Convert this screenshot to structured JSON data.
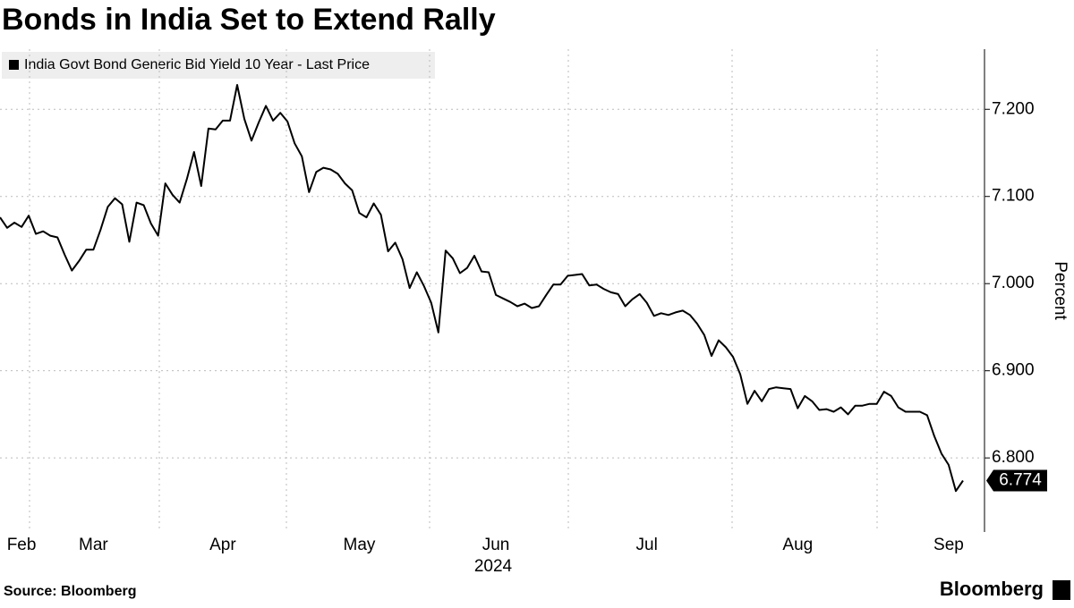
{
  "chart_data": {
    "type": "line",
    "title": "Bonds in India Set to Extend Rally",
    "legend": "India Govt Bond Generic Bid Yield 10 Year - Last Price",
    "ylabel": "Percent",
    "xlabel": "2024",
    "source": "Source: Bloomberg",
    "brand": "Bloomberg",
    "color": "#000000",
    "grid": true,
    "categories": [
      null,
      null,
      null,
      "Feb",
      null,
      null,
      null,
      null,
      null,
      null,
      null,
      null,
      null,
      "Mar",
      null,
      null,
      null,
      null,
      null,
      null,
      null,
      null,
      null,
      null,
      null,
      null,
      null,
      null,
      null,
      null,
      null,
      "Apr",
      null,
      null,
      null,
      null,
      null,
      null,
      null,
      null,
      null,
      null,
      null,
      null,
      null,
      null,
      null,
      null,
      null,
      null,
      "May",
      null,
      null,
      null,
      null,
      null,
      null,
      null,
      null,
      null,
      null,
      null,
      null,
      null,
      null,
      null,
      null,
      null,
      null,
      "Jun",
      null,
      null,
      null,
      null,
      null,
      null,
      null,
      null,
      null,
      null,
      null,
      null,
      null,
      null,
      null,
      null,
      null,
      null,
      null,
      null,
      "Jul",
      null,
      null,
      null,
      null,
      null,
      null,
      null,
      null,
      null,
      null,
      null,
      null,
      null,
      null,
      null,
      null,
      null,
      null,
      null,
      null,
      "Aug",
      null,
      null,
      null,
      null,
      null,
      null,
      null,
      null,
      null,
      null,
      null,
      null,
      null,
      null,
      null,
      null,
      null,
      null,
      null,
      null,
      "Sep",
      null,
      null
    ],
    "values": [
      7.076,
      7.064,
      7.07,
      7.065,
      7.078,
      7.057,
      7.06,
      7.055,
      7.053,
      7.033,
      7.015,
      7.026,
      7.039,
      7.039,
      7.062,
      7.088,
      7.098,
      7.091,
      7.048,
      7.093,
      7.09,
      7.069,
      7.055,
      7.115,
      7.102,
      7.093,
      7.12,
      7.151,
      7.112,
      7.178,
      7.177,
      7.187,
      7.187,
      7.228,
      7.189,
      7.164,
      7.185,
      7.204,
      7.187,
      7.196,
      7.186,
      7.161,
      7.146,
      7.105,
      7.128,
      7.133,
      7.131,
      7.126,
      7.115,
      7.107,
      7.081,
      7.076,
      7.092,
      7.079,
      7.037,
      7.047,
      7.028,
      6.995,
      7.013,
      6.997,
      6.978,
      6.944,
      7.038,
      7.029,
      7.012,
      7.018,
      7.032,
      7.014,
      7.013,
      6.987,
      6.983,
      6.979,
      6.974,
      6.977,
      6.972,
      6.974,
      6.987,
      6.999,
      6.999,
      7.009,
      7.01,
      7.011,
      6.998,
      6.999,
      6.994,
      6.99,
      6.988,
      6.974,
      6.982,
      6.988,
      6.978,
      6.963,
      6.966,
      6.964,
      6.967,
      6.969,
      6.964,
      6.954,
      6.941,
      6.917,
      6.935,
      6.927,
      6.916,
      6.896,
      6.862,
      6.877,
      6.865,
      6.879,
      6.881,
      6.88,
      6.879,
      6.857,
      6.871,
      6.865,
      6.855,
      6.856,
      6.853,
      6.858,
      6.85,
      6.86,
      6.86,
      6.862,
      6.862,
      6.876,
      6.871,
      6.858,
      6.853,
      6.853,
      6.853,
      6.849,
      6.825,
      6.805,
      6.792,
      6.762,
      6.774
    ],
    "ylim": [
      6.715,
      7.269
    ],
    "yticks": [
      {
        "value": 6.8,
        "label": "6.800"
      },
      {
        "value": 6.9,
        "label": "6.900"
      },
      {
        "value": 7.0,
        "label": "7.000"
      },
      {
        "value": 7.1,
        "label": "7.100"
      },
      {
        "value": 7.2,
        "label": "7.200"
      }
    ]
  }
}
